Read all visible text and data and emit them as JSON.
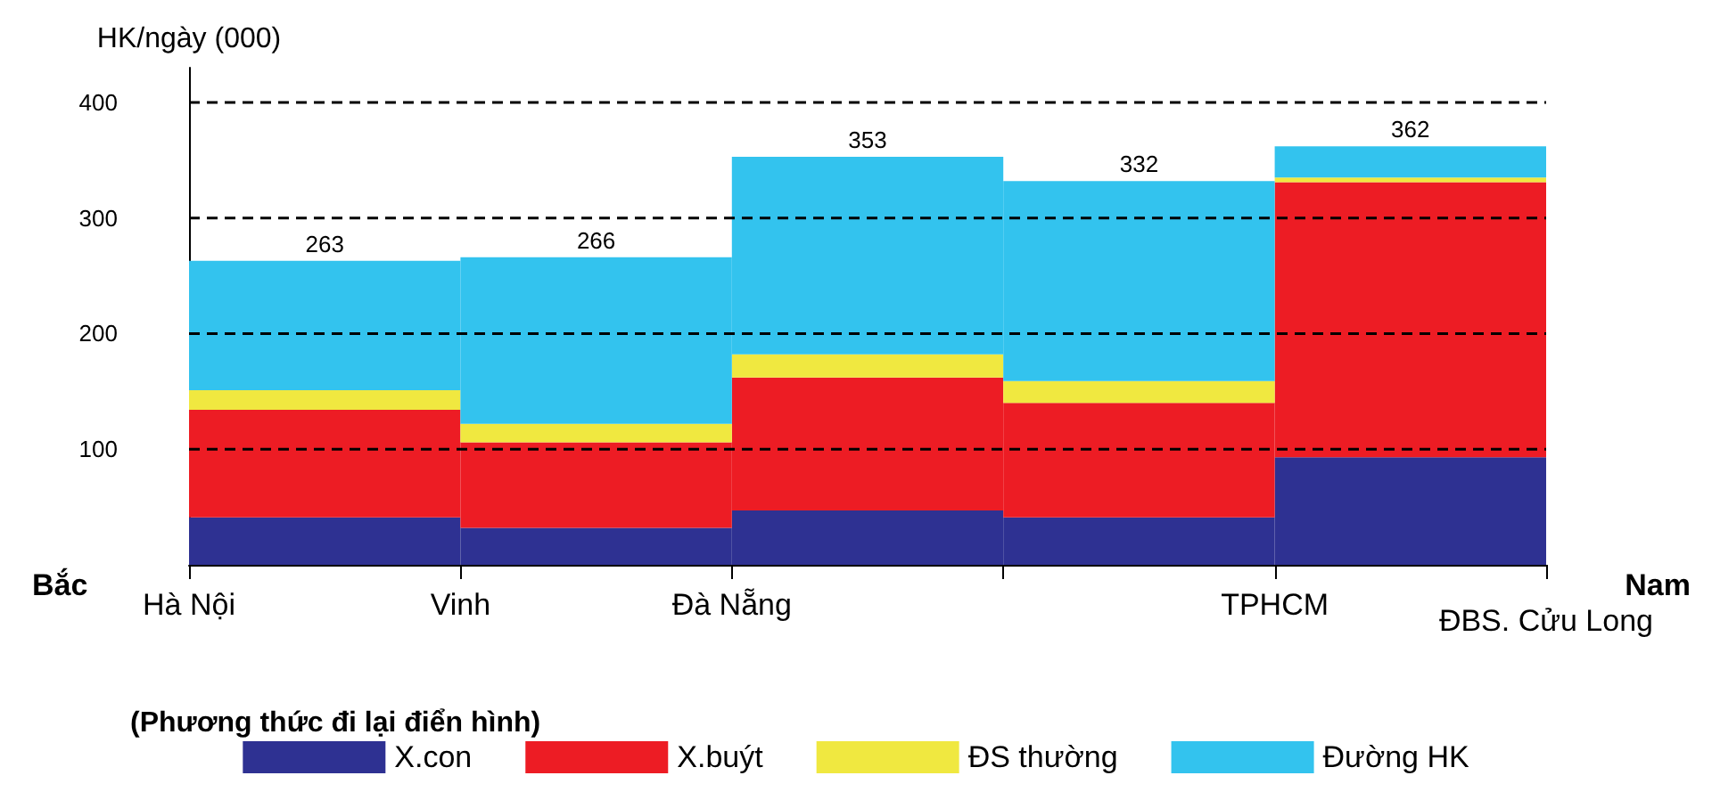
{
  "chart_data": {
    "type": "histogram",
    "stacked": true,
    "ylabel": "HK/ngày (000)",
    "xlabel": "(Phương thức đi lại điển hình)",
    "categories": [
      "Hà Nội",
      "Vinh",
      "Đà Nẵng",
      null,
      "TPHCM"
    ],
    "ylim": [
      0,
      430
    ],
    "yticks": [
      100,
      200,
      300,
      400
    ],
    "grid": "y",
    "line_style": "dashed",
    "legend": "bottom",
    "series": [
      {
        "name": "X.con",
        "color": "#2e3192",
        "values": [
          41,
          32,
          47,
          41,
          93
        ]
      },
      {
        "name": "X.buýt",
        "color": "#ed1c24",
        "values": [
          93,
          74,
          115,
          99,
          238
        ]
      },
      {
        "name": "ĐS thường",
        "color": "#f0e840",
        "values": [
          17,
          16,
          20,
          19,
          4
        ]
      },
      {
        "name": "Đường HK",
        "color": "#33c3ee",
        "values": [
          112,
          144,
          171,
          173,
          27
        ]
      }
    ],
    "totals": [
      "263",
      "266",
      "353",
      "332",
      "362"
    ],
    "annotations": [
      "Bắc",
      "Nam",
      "ĐBS. Cửu Long"
    ]
  }
}
